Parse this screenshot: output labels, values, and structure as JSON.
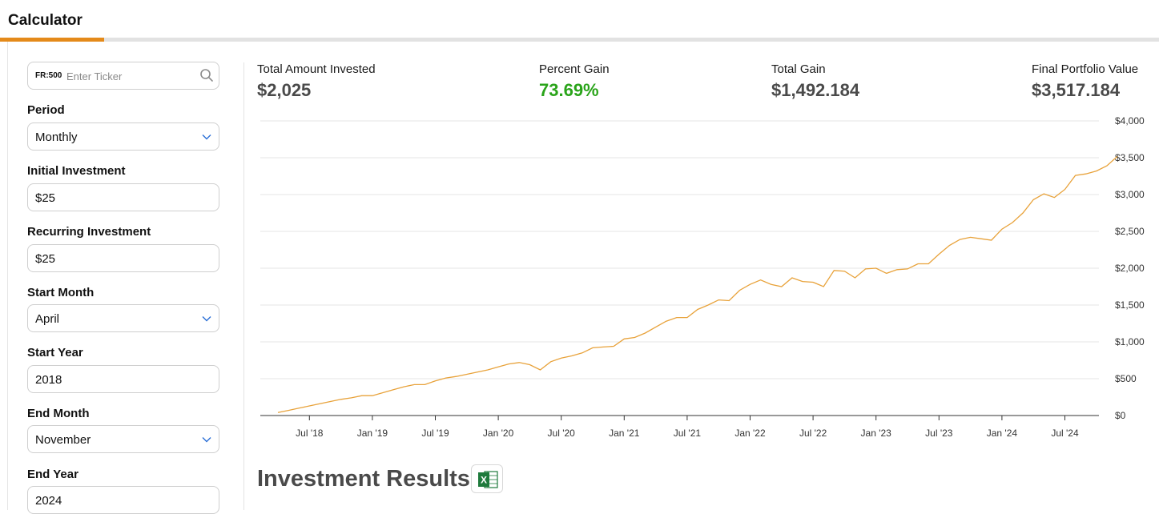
{
  "header": {
    "title": "Calculator"
  },
  "ticker": {
    "prefix": "FR:500",
    "placeholder": "Enter Ticker"
  },
  "form": {
    "period_label": "Period",
    "period_value": "Monthly",
    "initial_label": "Initial Investment",
    "initial_value": "$25",
    "recurring_label": "Recurring Investment",
    "recurring_value": "$25",
    "start_month_label": "Start Month",
    "start_month_value": "April",
    "start_year_label": "Start Year",
    "start_year_value": "2018",
    "end_month_label": "End Month",
    "end_month_value": "November",
    "end_year_label": "End Year",
    "end_year_value": "2024"
  },
  "stats": {
    "total_invested_label": "Total Amount Invested",
    "total_invested_value": "$2,025",
    "percent_gain_label": "Percent Gain",
    "percent_gain_value": "73.69%",
    "total_gain_label": "Total Gain",
    "total_gain_value": "$1,492.184",
    "final_value_label": "Final Portfolio Value",
    "final_value_value": "$3,517.184"
  },
  "results": {
    "title": "Investment Results",
    "export_icon": "excel-icon"
  },
  "colors": {
    "accent": "#e48a1a",
    "line": "#e8a23a",
    "gain": "#2aa41a"
  },
  "chart_data": {
    "type": "line",
    "y_tick_labels": [
      "$0",
      "$500",
      "$1,000",
      "$1,500",
      "$2,000",
      "$2,500",
      "$3,000",
      "$3,500",
      "$4,000"
    ],
    "x_tick_labels": [
      "Jul '18",
      "Jan '19",
      "Jul '19",
      "Jan '20",
      "Jul '20",
      "Jan '21",
      "Jul '21",
      "Jan '22",
      "Jul '22",
      "Jan '23",
      "Jul '23",
      "Jan '24",
      "Jul '24"
    ],
    "ylim": [
      0,
      4000
    ],
    "x_start": "2018-04",
    "x_end": "2024-11",
    "grid": true,
    "series": [
      {
        "values": [
          40,
          70,
          100,
          130,
          160,
          190,
          220,
          240,
          270,
          270,
          310,
          350,
          390,
          420,
          420,
          470,
          510,
          530,
          560,
          590,
          620,
          660,
          700,
          720,
          690,
          620,
          730,
          780,
          810,
          850,
          920,
          930,
          940,
          1040,
          1060,
          1120,
          1200,
          1280,
          1330,
          1330,
          1440,
          1500,
          1570,
          1560,
          1700,
          1780,
          1840,
          1780,
          1750,
          1870,
          1820,
          1810,
          1750,
          1970,
          1960,
          1870,
          1990,
          2000,
          1930,
          1980,
          1990,
          2060,
          2060,
          2190,
          2310,
          2390,
          2420,
          2400,
          2380,
          2530,
          2620,
          2750,
          2930,
          3010,
          2960,
          3070,
          3260,
          3280,
          3320,
          3390,
          3517
        ]
      }
    ]
  }
}
